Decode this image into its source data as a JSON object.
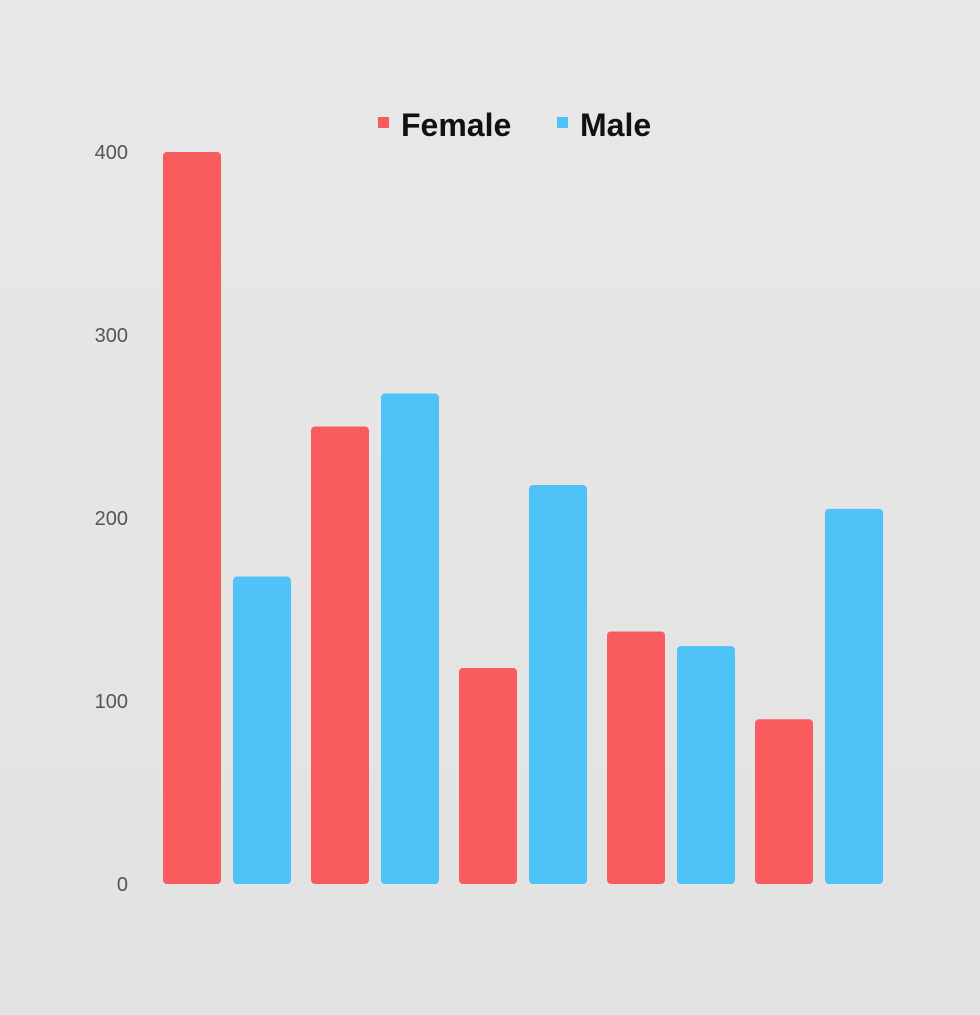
{
  "chart_data": {
    "type": "bar",
    "categories": [
      "",
      "",
      "",
      "",
      ""
    ],
    "series": [
      {
        "name": "Female",
        "color": "#f85c5f",
        "values": [
          400,
          250,
          118,
          138,
          90
        ]
      },
      {
        "name": "Male",
        "color": "#4fc2f7",
        "values": [
          168,
          268,
          218,
          130,
          205
        ]
      }
    ],
    "yticks": [
      0,
      100,
      200,
      300,
      400
    ],
    "ylim": [
      0,
      400
    ],
    "legend_position": "top-center",
    "grid": false
  }
}
